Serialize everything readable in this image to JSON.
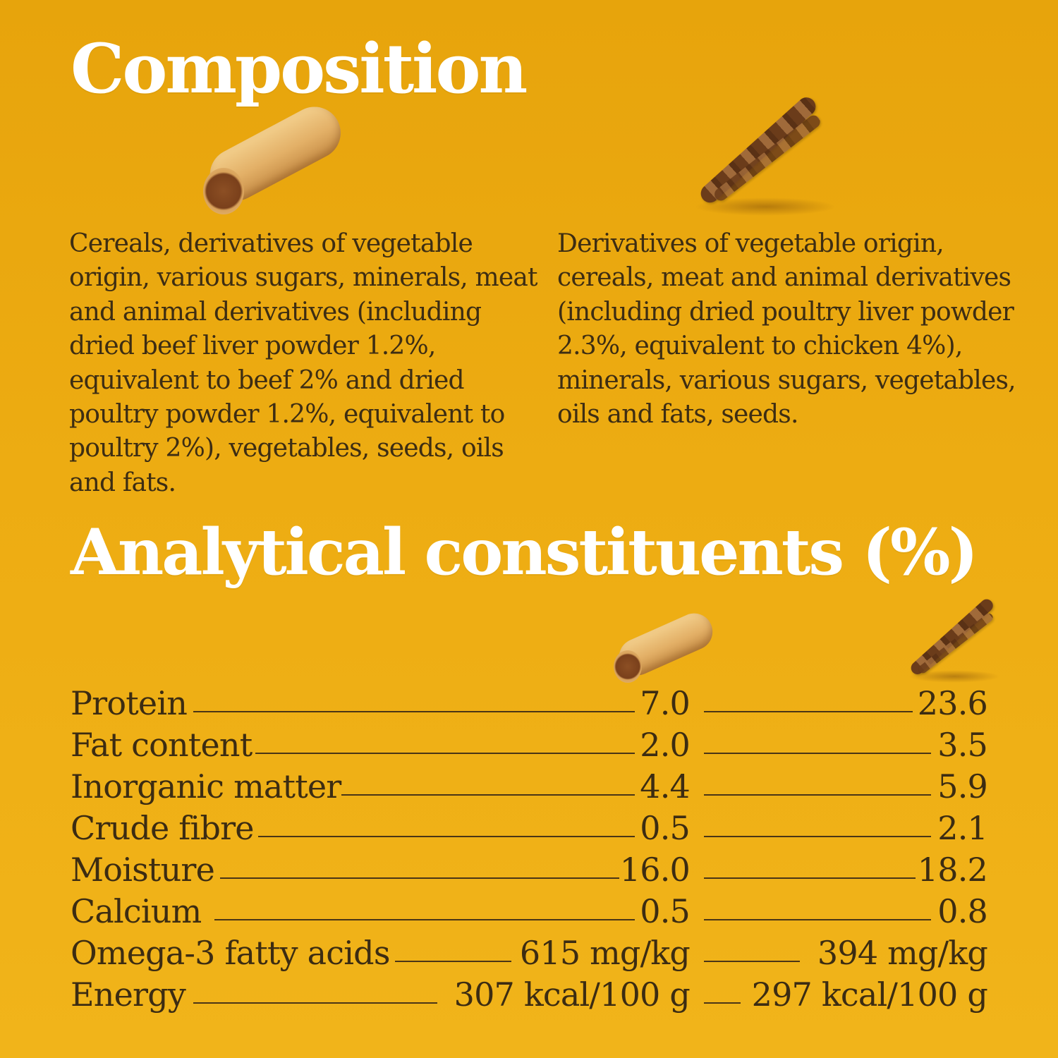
{
  "composition": {
    "title": "Composition",
    "left_text": "Cereals, derivatives of vegetable origin, various sugars, minerals, meat and animal derivatives (including dried beef liver powder 1.2%, equivalent to beef 2% and dried poultry powder 1.2%, equivalent to poultry 2%), vegetables, seeds, oils and fats.",
    "right_text": "Derivatives of vegetable origin, cereals, meat and animal derivatives (including dried poultry liver powder 2.3%, equivalent to chicken 4%), minerals, various sugars, vegetables, oils and fats, seeds."
  },
  "analytical": {
    "title": "Analytical constituents (%)",
    "rows": [
      {
        "label": "Protein",
        "value_1": "7.0",
        "value_2": "23.6"
      },
      {
        "label": "Fat content",
        "value_1": "2.0",
        "value_2": "3.5"
      },
      {
        "label": "Inorganic matter",
        "value_1": "4.4",
        "value_2": "5.9"
      },
      {
        "label": "Crude fibre",
        "value_1": "0.5",
        "value_2": "2.1"
      },
      {
        "label": "Moisture",
        "value_1": "16.0",
        "value_2": "18.2"
      },
      {
        "label": "Calcium",
        "value_1": "0.5",
        "value_2": "0.8"
      },
      {
        "label": "Omega-3 fatty acids",
        "value_1": "615 mg/kg",
        "value_2": "394 mg/kg"
      },
      {
        "label": "Energy",
        "value_1": "307 kcal/100 g",
        "value_2": "297 kcal/100 g"
      }
    ]
  },
  "images": {
    "product_1": "filled-chew-stick",
    "product_2": "twisted-chew-stick"
  },
  "colors": {
    "background": "#edac12",
    "heading": "#ffffff",
    "text": "#3c2c12"
  }
}
